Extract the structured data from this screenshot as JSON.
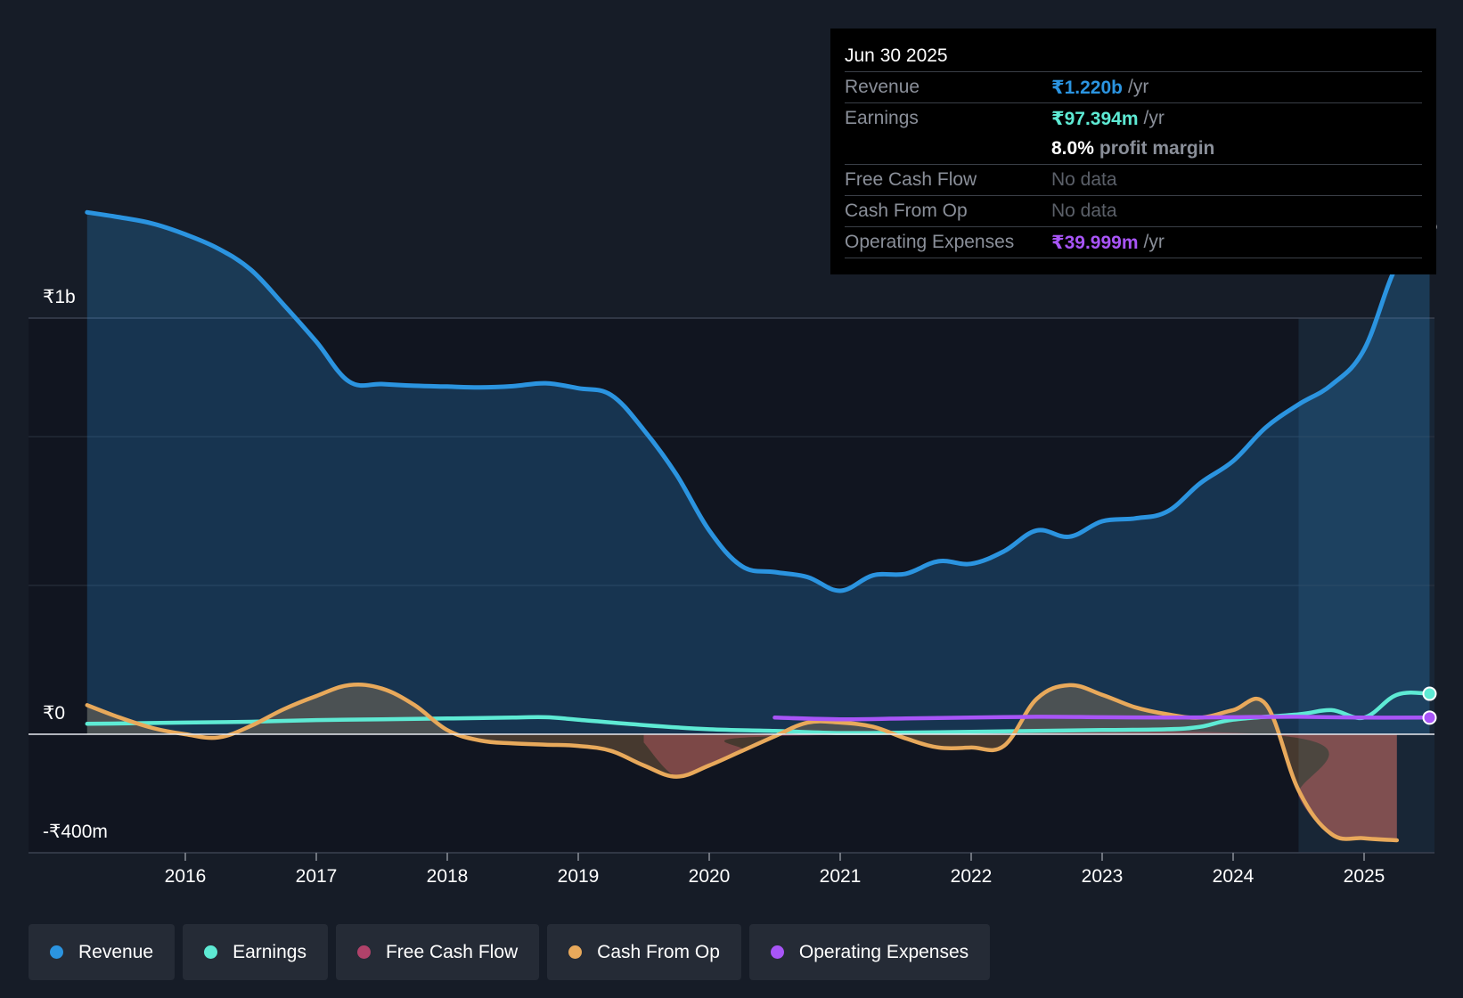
{
  "chart_data": {
    "type": "line",
    "title": "",
    "y_axis_labels": {
      "top": "₹1b",
      "zero": "₹0",
      "bottom": "-₹400m"
    },
    "ylim_millions": [
      -400,
      1400
    ],
    "xlim": [
      2015.25,
      2025.5
    ],
    "x_ticks": [
      "2016",
      "2017",
      "2018",
      "2019",
      "2020",
      "2021",
      "2022",
      "2023",
      "2024",
      "2025"
    ],
    "forecast_region_start": 2024.5,
    "series": [
      {
        "name": "Revenue",
        "color": "#2b94e0",
        "filled": true,
        "points": [
          [
            2015.25,
            1255
          ],
          [
            2015.5,
            1243
          ],
          [
            2015.75,
            1228
          ],
          [
            2016.0,
            1202
          ],
          [
            2016.25,
            1168
          ],
          [
            2016.5,
            1117
          ],
          [
            2016.75,
            1033
          ],
          [
            2017.0,
            944
          ],
          [
            2017.25,
            848
          ],
          [
            2017.5,
            842
          ],
          [
            2017.75,
            838
          ],
          [
            2018.0,
            836
          ],
          [
            2018.25,
            834
          ],
          [
            2018.5,
            837
          ],
          [
            2018.75,
            844
          ],
          [
            2019.0,
            832
          ],
          [
            2019.25,
            816
          ],
          [
            2019.5,
            732
          ],
          [
            2019.75,
            624
          ],
          [
            2020.0,
            490
          ],
          [
            2020.25,
            404
          ],
          [
            2020.5,
            390
          ],
          [
            2020.75,
            378
          ],
          [
            2021.0,
            345
          ],
          [
            2021.25,
            382
          ],
          [
            2021.5,
            386
          ],
          [
            2021.75,
            416
          ],
          [
            2022.0,
            410
          ],
          [
            2022.25,
            440
          ],
          [
            2022.5,
            490
          ],
          [
            2022.75,
            475
          ],
          [
            2023.0,
            512
          ],
          [
            2023.25,
            519
          ],
          [
            2023.5,
            536
          ],
          [
            2023.75,
            604
          ],
          [
            2024.0,
            657
          ],
          [
            2024.25,
            738
          ],
          [
            2024.5,
            793
          ],
          [
            2024.75,
            840
          ],
          [
            2025.0,
            925
          ],
          [
            2025.25,
            1128
          ],
          [
            2025.5,
            1220
          ]
        ]
      },
      {
        "name": "Earnings",
        "color": "#5eead4",
        "filled": false,
        "points": [
          [
            2015.25,
            25
          ],
          [
            2016.0,
            28
          ],
          [
            2016.5,
            30
          ],
          [
            2017.0,
            34
          ],
          [
            2017.5,
            36
          ],
          [
            2018.0,
            38
          ],
          [
            2018.5,
            40
          ],
          [
            2018.75,
            41
          ],
          [
            2019.0,
            35
          ],
          [
            2019.5,
            22
          ],
          [
            2020.0,
            12
          ],
          [
            2020.5,
            8
          ],
          [
            2021.0,
            3
          ],
          [
            2021.5,
            4
          ],
          [
            2022.0,
            6
          ],
          [
            2022.5,
            8
          ],
          [
            2023.0,
            10
          ],
          [
            2023.5,
            12
          ],
          [
            2023.75,
            18
          ],
          [
            2024.0,
            35
          ],
          [
            2024.5,
            48
          ],
          [
            2024.75,
            58
          ],
          [
            2025.0,
            40
          ],
          [
            2025.25,
            95
          ],
          [
            2025.5,
            97.394
          ]
        ]
      },
      {
        "name": "Free Cash Flow",
        "color": "#b0426a",
        "filled": true,
        "points": [
          [
            2019.5,
            -20
          ],
          [
            2019.75,
            -102
          ],
          [
            2020.0,
            -75
          ],
          [
            2020.25,
            -40
          ],
          [
            2020.5,
            -5
          ],
          [
            2024.4,
            -5
          ],
          [
            2024.5,
            -150
          ],
          [
            2024.75,
            -240
          ],
          [
            2025.0,
            -250
          ],
          [
            2025.25,
            -255
          ]
        ]
      },
      {
        "name": "Cash From Op",
        "color": "#e8a95b",
        "filled": true,
        "points": [
          [
            2015.25,
            70
          ],
          [
            2015.5,
            40
          ],
          [
            2015.75,
            15
          ],
          [
            2016.0,
            0
          ],
          [
            2016.25,
            -8
          ],
          [
            2016.5,
            20
          ],
          [
            2016.75,
            60
          ],
          [
            2017.0,
            92
          ],
          [
            2017.25,
            118
          ],
          [
            2017.5,
            110
          ],
          [
            2017.75,
            70
          ],
          [
            2018.0,
            10
          ],
          [
            2018.25,
            -15
          ],
          [
            2018.5,
            -22
          ],
          [
            2018.75,
            -25
          ],
          [
            2019.0,
            -28
          ],
          [
            2019.25,
            -40
          ],
          [
            2019.5,
            -75
          ],
          [
            2019.75,
            -102
          ],
          [
            2020.0,
            -75
          ],
          [
            2020.25,
            -40
          ],
          [
            2020.5,
            -5
          ],
          [
            2020.75,
            28
          ],
          [
            2021.0,
            28
          ],
          [
            2021.25,
            18
          ],
          [
            2021.5,
            -10
          ],
          [
            2021.75,
            -32
          ],
          [
            2022.0,
            -32
          ],
          [
            2022.25,
            -28
          ],
          [
            2022.5,
            85
          ],
          [
            2022.75,
            118
          ],
          [
            2023.0,
            95
          ],
          [
            2023.25,
            65
          ],
          [
            2023.5,
            48
          ],
          [
            2023.75,
            40
          ],
          [
            2024.0,
            58
          ],
          [
            2024.25,
            72
          ],
          [
            2024.5,
            -135
          ],
          [
            2024.75,
            -240
          ],
          [
            2025.0,
            -250
          ],
          [
            2025.25,
            -255
          ]
        ]
      },
      {
        "name": "Operating Expenses",
        "color": "#a855f7",
        "filled": false,
        "points": [
          [
            2020.5,
            40
          ],
          [
            2021.0,
            36
          ],
          [
            2021.5,
            38
          ],
          [
            2022.0,
            40
          ],
          [
            2022.5,
            42
          ],
          [
            2023.0,
            41
          ],
          [
            2023.5,
            40
          ],
          [
            2024.0,
            41
          ],
          [
            2024.5,
            42
          ],
          [
            2025.0,
            40
          ],
          [
            2025.5,
            39.999
          ]
        ]
      }
    ]
  },
  "tooltip": {
    "date": "Jun 30 2025",
    "revenue_label": "Revenue",
    "revenue_value": "₹1.220b",
    "revenue_unit": "/yr",
    "earnings_label": "Earnings",
    "earnings_value": "₹97.394m",
    "earnings_unit": "/yr",
    "margin_value": "8.0%",
    "margin_unit": "profit margin",
    "fcf_label": "Free Cash Flow",
    "fcf_value": "No data",
    "cfo_label": "Cash From Op",
    "cfo_value": "No data",
    "opex_label": "Operating Expenses",
    "opex_value": "₹39.999m",
    "opex_unit": "/yr"
  },
  "colors": {
    "revenue": "#2b94e0",
    "earnings": "#5eead4",
    "fcf": "#b0426a",
    "cfo": "#e8a95b",
    "opex": "#a855f7"
  },
  "legend": {
    "items": [
      "Revenue",
      "Earnings",
      "Free Cash Flow",
      "Cash From Op",
      "Operating Expenses"
    ]
  }
}
